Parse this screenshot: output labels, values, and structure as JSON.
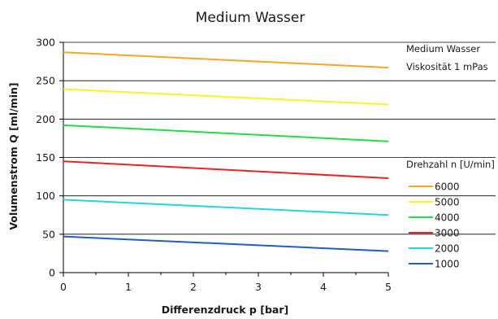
{
  "chart_data": {
    "type": "line",
    "title": "Medium Wasser",
    "xlabel": "Differenzdruck p [bar]",
    "ylabel": "Volumenstrom Q [ml/min]",
    "xlim": [
      0,
      5
    ],
    "ylim": [
      0,
      300
    ],
    "xticks": [
      0,
      1,
      2,
      3,
      4,
      5
    ],
    "yticks": [
      0,
      50,
      100,
      150,
      200,
      250,
      300
    ],
    "grid": "horizontal",
    "annotations": [
      "Medium Wasser",
      "Viskosität 1 mPas"
    ],
    "legend_title": "Drehzahl n [U/min]",
    "legend_position": "right",
    "series": [
      {
        "name": "6000",
        "color": "#f5a623",
        "x": [
          0,
          5
        ],
        "y": [
          287,
          267
        ]
      },
      {
        "name": "5000",
        "color": "#f5f523",
        "x": [
          0,
          5
        ],
        "y": [
          239,
          219
        ]
      },
      {
        "name": "4000",
        "color": "#22dd44",
        "x": [
          0,
          5
        ],
        "y": [
          192,
          171
        ]
      },
      {
        "name": "3000",
        "color": "#ee2222",
        "x": [
          0,
          5
        ],
        "y": [
          145,
          123
        ]
      },
      {
        "name": "2000",
        "color": "#22d4e6",
        "x": [
          0,
          5
        ],
        "y": [
          95,
          75
        ]
      },
      {
        "name": "1000",
        "color": "#1f5fbf",
        "x": [
          0,
          5
        ],
        "y": [
          47,
          28
        ]
      }
    ]
  }
}
